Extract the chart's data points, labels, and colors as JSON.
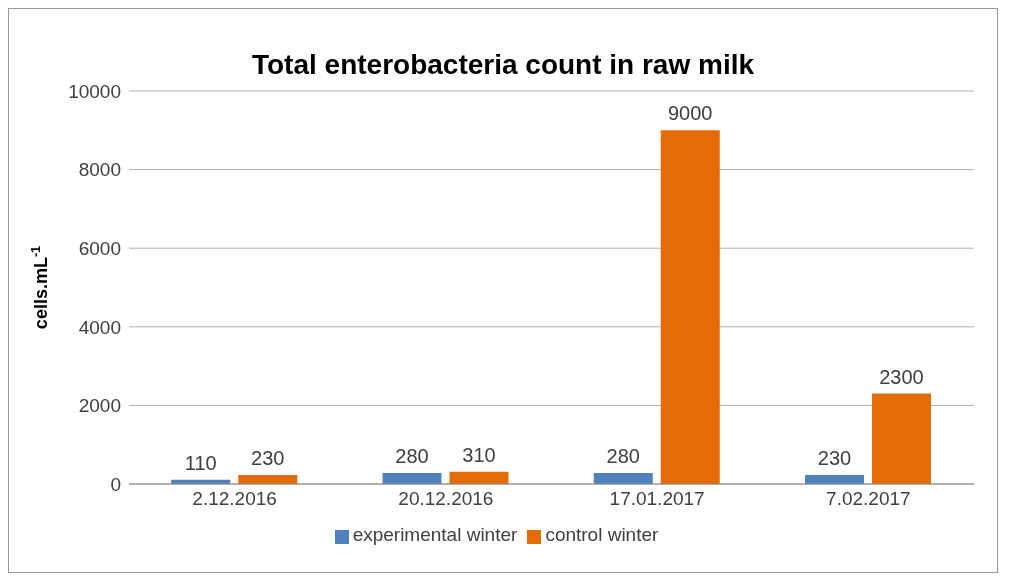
{
  "chart_data": {
    "type": "bar",
    "title": "Total enterobacteria count in raw milk",
    "ylabel": "cells.mL$^{-1}$",
    "categories": [
      "2.12.2016",
      "20.12.2016",
      "17.01.2017",
      "7.02.2017"
    ],
    "series": [
      {
        "name": "experimental winter",
        "color": "#4f81bd",
        "values": [
          110,
          280,
          280,
          230
        ]
      },
      {
        "name": "control winter",
        "color": "#e36c09",
        "values": [
          230,
          310,
          9000,
          2300
        ]
      }
    ],
    "ylim": [
      0,
      10000
    ],
    "yticks": [
      0,
      2000,
      4000,
      6000,
      8000,
      10000
    ],
    "grid": "y",
    "legend": "bottom",
    "data_labels": true
  }
}
